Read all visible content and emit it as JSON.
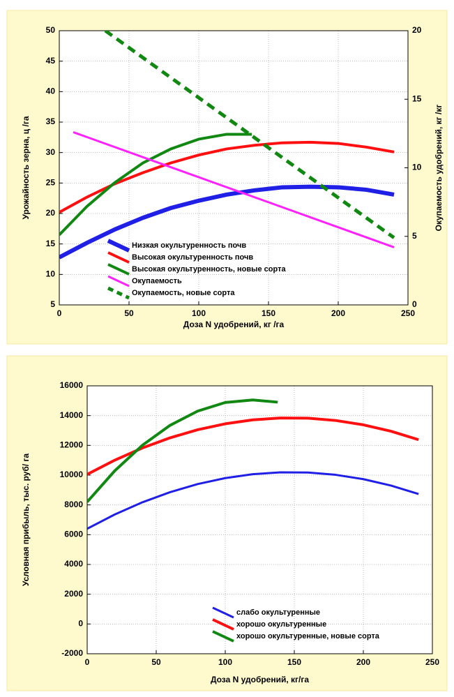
{
  "chart_data": [
    {
      "type": "line",
      "xlabel": "Доза N удобрений, кг /га",
      "ylabel": "Урожайность зерна, ц /га",
      "y2label": "Окупаемость удобрений, кг /кг",
      "xlim": [
        0,
        250
      ],
      "xticks": [
        0,
        50,
        100,
        150,
        200,
        250
      ],
      "ylim": [
        5,
        50
      ],
      "yticks": [
        5,
        10,
        15,
        20,
        25,
        30,
        35,
        40,
        45,
        50
      ],
      "y2lim": [
        0,
        20
      ],
      "y2ticks": [
        0,
        5,
        10,
        15,
        20
      ],
      "grid": true,
      "legend": "lower left",
      "series": [
        {
          "name": "Низкая окультуренность почв",
          "color": "#1f1fe6",
          "line_width": 6,
          "x": [
            0,
            20,
            40,
            60,
            80,
            100,
            120,
            140,
            160,
            180,
            200,
            220,
            240
          ],
          "values": [
            12.8,
            15.2,
            17.4,
            19.3,
            20.9,
            22.1,
            23.1,
            23.8,
            24.3,
            24.4,
            24.3,
            23.9,
            23.1
          ]
        },
        {
          "name": "Высокая окультуренность почв",
          "color": "#ff0f0f",
          "line_width": 4,
          "x": [
            0,
            20,
            40,
            60,
            80,
            100,
            120,
            140,
            160,
            180,
            200,
            220,
            240
          ],
          "values": [
            20.2,
            22.7,
            24.9,
            26.7,
            28.3,
            29.6,
            30.6,
            31.2,
            31.6,
            31.7,
            31.5,
            30.9,
            30.1
          ]
        },
        {
          "name": "Высокая окультуренность, новые сорта",
          "color": "#118811",
          "line_width": 4,
          "x": [
            0,
            20,
            40,
            60,
            80,
            100,
            120,
            138
          ],
          "values": [
            16.5,
            21.2,
            25.1,
            28.3,
            30.6,
            32.2,
            33.0,
            33.0
          ]
        },
        {
          "name": "Окупаемость",
          "color": "#ff22ff",
          "line_width": 3,
          "axis": "y2",
          "x": [
            10,
            240
          ],
          "values": [
            12.6,
            4.2
          ]
        },
        {
          "name": "Окупаемость, новые сорта",
          "color": "#118811",
          "line_width": 5,
          "axis": "y2",
          "dashed": true,
          "x": [
            33,
            240
          ],
          "values": [
            20,
            4.9
          ]
        }
      ]
    },
    {
      "type": "line",
      "xlabel": "Доза N удобрений, кг/га",
      "ylabel": "Условная прибыль, тыс. руб/ га",
      "xlim": [
        0,
        250
      ],
      "xticks": [
        0,
        50,
        100,
        150,
        200,
        250
      ],
      "ylim": [
        -2000,
        16000
      ],
      "yticks": [
        -2000,
        0,
        2000,
        4000,
        6000,
        8000,
        10000,
        12000,
        14000,
        16000
      ],
      "grid": true,
      "legend": "lower center",
      "series": [
        {
          "name": "слабо окультуренные",
          "color": "#1f1fe6",
          "line_width": 3,
          "x": [
            0,
            20,
            40,
            60,
            80,
            100,
            120,
            140,
            160,
            180,
            200,
            220,
            240
          ],
          "values": [
            6400,
            7357,
            8176,
            8856,
            9398,
            9800,
            10064,
            10189,
            10174,
            10021,
            9730,
            9300,
            8730
          ]
        },
        {
          "name": "хорошо окультуренные",
          "color": "#ff0f0f",
          "line_width": 4,
          "x": [
            0,
            20,
            40,
            60,
            80,
            100,
            120,
            140,
            160,
            180,
            200,
            220,
            240
          ],
          "values": [
            10050,
            11007,
            11826,
            12506,
            13048,
            13450,
            13714,
            13839,
            13824,
            13671,
            13380,
            12950,
            12380
          ]
        },
        {
          "name": "хорошо окультуренные, новые сорта",
          "color": "#118811",
          "line_width": 4,
          "x": [
            0,
            20,
            40,
            60,
            80,
            100,
            120,
            138
          ],
          "values": [
            8200,
            10293,
            12007,
            13343,
            14302,
            14882,
            15050,
            14901
          ]
        }
      ]
    }
  ]
}
